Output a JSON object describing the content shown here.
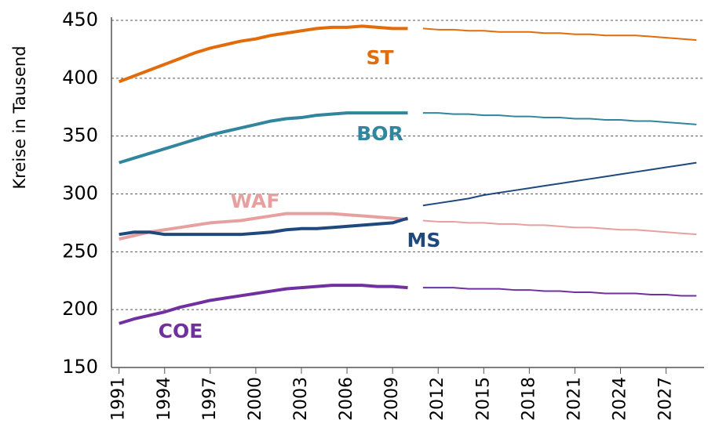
{
  "chart_data": {
    "type": "line",
    "y_label": "Kreise  in Tausend",
    "x": [
      1991,
      1992,
      1993,
      1994,
      1995,
      1996,
      1997,
      1998,
      1999,
      2000,
      2001,
      2002,
      2003,
      2004,
      2005,
      2006,
      2007,
      2008,
      2009,
      2010
    ],
    "x_projection": [
      2011,
      2012,
      2013,
      2014,
      2015,
      2016,
      2017,
      2018,
      2019,
      2020,
      2021,
      2022,
      2023,
      2024,
      2025,
      2026,
      2027,
      2028,
      2029
    ],
    "xlim": [
      1990.5,
      2029.5
    ],
    "xticks": [
      1991,
      1994,
      1997,
      2000,
      2003,
      2006,
      2009,
      2012,
      2015,
      2018,
      2021,
      2024,
      2027
    ],
    "ylim": [
      150,
      450
    ],
    "yticks": [
      150,
      200,
      250,
      300,
      350,
      400,
      450
    ],
    "grid": true,
    "series": [
      {
        "name": "ST",
        "color": "#e36c0a",
        "values": [
          397,
          402,
          407,
          412,
          417,
          422,
          426,
          429,
          432,
          434,
          437,
          439,
          441,
          443,
          444,
          444,
          445,
          444,
          443,
          443
        ],
        "projection_values": [
          443,
          442,
          442,
          441,
          441,
          440,
          440,
          440,
          439,
          439,
          438,
          438,
          437,
          437,
          437,
          436,
          435,
          434,
          433
        ]
      },
      {
        "name": "BOR",
        "color": "#31859c",
        "values": [
          327,
          331,
          335,
          339,
          343,
          347,
          351,
          354,
          357,
          360,
          363,
          365,
          366,
          368,
          369,
          370,
          370,
          370,
          370,
          370
        ],
        "projection_values": [
          370,
          370,
          369,
          369,
          368,
          368,
          367,
          367,
          366,
          366,
          365,
          365,
          364,
          364,
          363,
          363,
          362,
          361,
          360
        ]
      },
      {
        "name": "WAF",
        "color": "#e6a0a0",
        "values": [
          261,
          264,
          267,
          269,
          271,
          273,
          275,
          276,
          277,
          279,
          281,
          283,
          283,
          283,
          283,
          282,
          281,
          280,
          279,
          278
        ],
        "projection_values": [
          277,
          276,
          276,
          275,
          275,
          274,
          274,
          273,
          273,
          272,
          271,
          271,
          270,
          269,
          269,
          268,
          267,
          266,
          265
        ]
      },
      {
        "name": "MS",
        "color": "#1f497d",
        "values": [
          265,
          267,
          267,
          265,
          265,
          265,
          265,
          265,
          265,
          266,
          267,
          269,
          270,
          270,
          271,
          272,
          273,
          274,
          275,
          279
        ],
        "projection_values": [
          290,
          292,
          294,
          296,
          299,
          301,
          303,
          305,
          307,
          309,
          311,
          313,
          315,
          317,
          319,
          321,
          323,
          325,
          327
        ]
      },
      {
        "name": "COE",
        "color": "#7030a0",
        "values": [
          188,
          192,
          195,
          198,
          202,
          205,
          208,
          210,
          212,
          214,
          216,
          218,
          219,
          220,
          221,
          221,
          221,
          220,
          220,
          219
        ],
        "projection_values": [
          219,
          219,
          219,
          218,
          218,
          218,
          217,
          217,
          216,
          216,
          215,
          215,
          214,
          214,
          214,
          213,
          213,
          212,
          212
        ]
      }
    ]
  }
}
